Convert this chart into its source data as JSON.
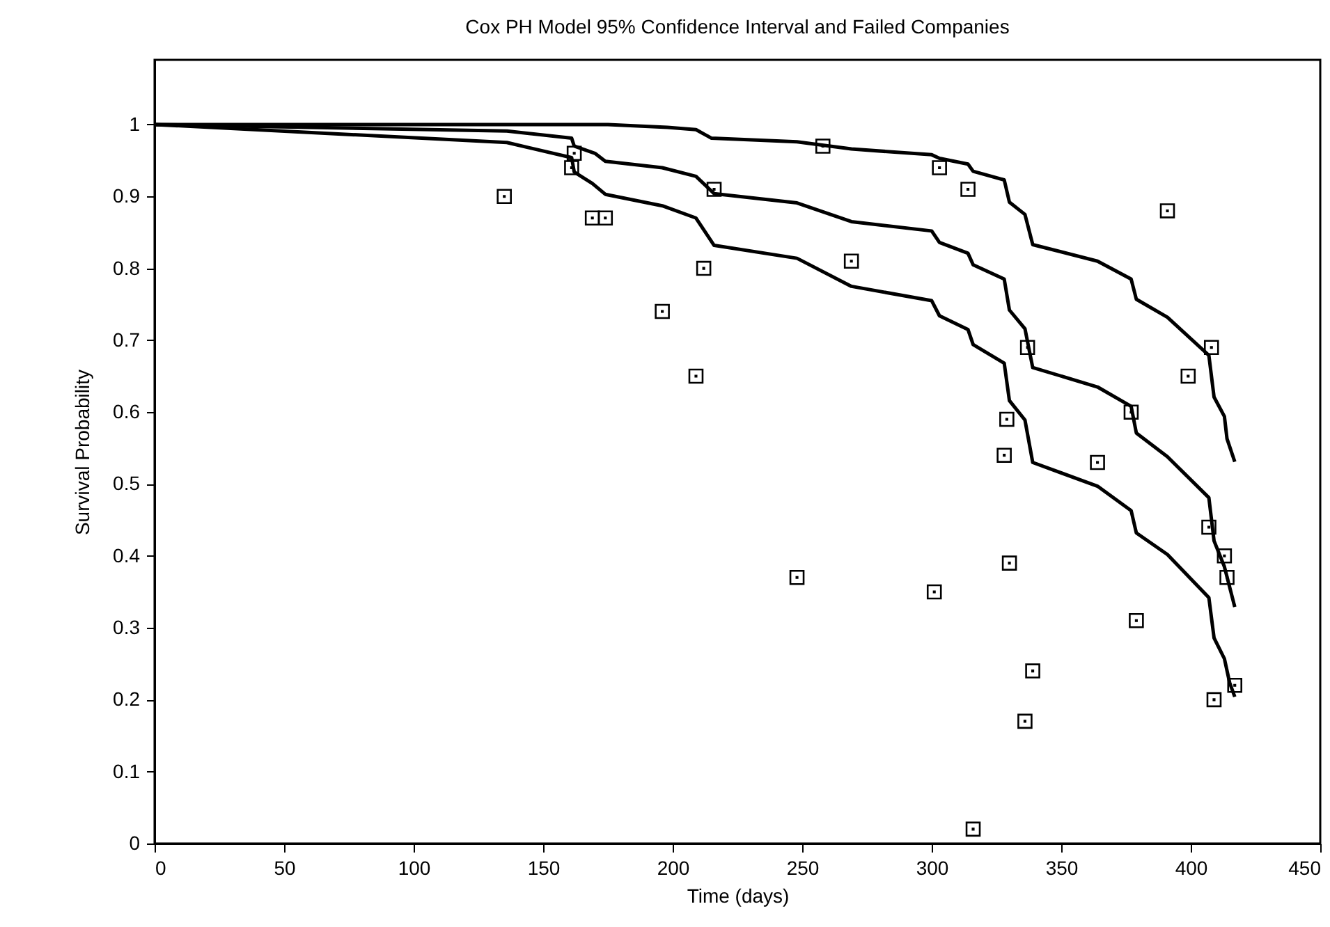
{
  "chart_data": {
    "type": "line",
    "title": "Cox PH Model 95% Confidence Interval and Failed Companies",
    "xlabel": "Time (days)",
    "ylabel": "Survival Probability",
    "xlim": [
      0,
      450
    ],
    "ylim": [
      0,
      1.09
    ],
    "xticks": [
      0,
      50,
      100,
      150,
      200,
      250,
      300,
      350,
      400,
      450
    ],
    "yticks": [
      0,
      0.1,
      0.2,
      0.3,
      0.4,
      0.5,
      0.6,
      0.7,
      0.8,
      0.9,
      1
    ],
    "grid": false,
    "line_style": "solid",
    "series": [
      {
        "type": "line",
        "color": "#000000",
        "x": [
          0,
          175,
          198,
          209,
          215,
          248,
          269,
          300,
          303,
          314,
          316,
          328,
          330,
          336,
          339,
          364,
          377,
          379,
          391,
          407,
          409,
          413,
          414,
          417
        ],
        "values": [
          1.0,
          1.0,
          0.996,
          0.993,
          0.981,
          0.976,
          0.966,
          0.958,
          0.953,
          0.945,
          0.935,
          0.923,
          0.892,
          0.875,
          0.833,
          0.81,
          0.785,
          0.757,
          0.732,
          0.679,
          0.621,
          0.594,
          0.563,
          0.531
        ]
      },
      {
        "type": "line",
        "color": "#000000",
        "x": [
          0,
          136,
          161,
          162,
          170,
          174,
          196,
          209,
          216,
          248,
          269,
          300,
          303,
          314,
          316,
          328,
          330,
          336,
          339,
          364,
          377,
          379,
          391,
          407,
          409,
          413,
          417
        ],
        "values": [
          1.0,
          0.991,
          0.981,
          0.97,
          0.96,
          0.949,
          0.94,
          0.928,
          0.904,
          0.891,
          0.865,
          0.852,
          0.836,
          0.821,
          0.805,
          0.785,
          0.742,
          0.716,
          0.662,
          0.635,
          0.608,
          0.571,
          0.538,
          0.481,
          0.421,
          0.385,
          0.329
        ]
      },
      {
        "type": "line",
        "color": "#000000",
        "x": [
          0,
          136,
          161,
          162,
          169,
          174,
          196,
          209,
          216,
          248,
          269,
          300,
          303,
          314,
          316,
          328,
          330,
          336,
          339,
          364,
          377,
          379,
          391,
          407,
          409,
          413,
          415,
          417
        ],
        "values": [
          1.0,
          0.975,
          0.954,
          0.934,
          0.918,
          0.903,
          0.887,
          0.87,
          0.832,
          0.814,
          0.775,
          0.755,
          0.734,
          0.715,
          0.694,
          0.668,
          0.616,
          0.589,
          0.53,
          0.497,
          0.463,
          0.432,
          0.402,
          0.342,
          0.286,
          0.257,
          0.224,
          0.204
        ]
      },
      {
        "type": "scatter",
        "color": "#000000",
        "marker": "square",
        "x": [
          135,
          162,
          161,
          169,
          174,
          196,
          209,
          212,
          216,
          258,
          303,
          314,
          391,
          269,
          337,
          408,
          399,
          377,
          329,
          328,
          364,
          407,
          413,
          414,
          330,
          248,
          301,
          379,
          339,
          336,
          417,
          409,
          316
        ],
        "values": [
          0.9,
          0.96,
          0.94,
          0.87,
          0.87,
          0.74,
          0.65,
          0.8,
          0.91,
          0.97,
          0.94,
          0.91,
          0.88,
          0.81,
          0.69,
          0.69,
          0.65,
          0.6,
          0.59,
          0.54,
          0.53,
          0.44,
          0.4,
          0.37,
          0.39,
          0.37,
          0.35,
          0.31,
          0.24,
          0.17,
          0.22,
          0.2,
          0.02
        ]
      }
    ]
  }
}
